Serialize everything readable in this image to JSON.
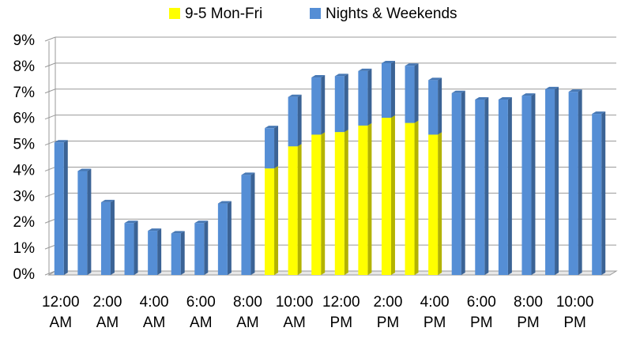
{
  "chart_data": {
    "type": "stacked-bar",
    "categories": [
      "12:00 AM",
      null,
      "2:00 AM",
      null,
      "4:00 AM",
      null,
      "6:00 AM",
      null,
      "8:00 AM",
      null,
      "10:00 AM",
      null,
      "12:00 PM",
      null,
      "2:00 PM",
      null,
      "4:00 PM",
      null,
      "6:00 PM",
      null,
      "8:00 PM",
      null,
      "10:00 PM",
      null
    ],
    "series": [
      {
        "name": "9-5 Mon-Fri",
        "color": "#ffff00",
        "values": [
          null,
          null,
          null,
          null,
          null,
          null,
          null,
          null,
          null,
          4.1,
          4.95,
          5.4,
          5.5,
          5.75,
          6.05,
          5.85,
          5.4,
          null,
          null,
          null,
          null,
          null,
          null,
          null
        ]
      },
      {
        "name": "Nights & Weekends",
        "color": "#558ed5",
        "values": [
          5.1,
          4.0,
          2.8,
          2.0,
          1.7,
          1.6,
          2.0,
          2.75,
          3.85,
          1.55,
          1.9,
          2.2,
          2.15,
          2.1,
          2.1,
          2.2,
          2.1,
          7.0,
          6.75,
          6.75,
          6.9,
          7.15,
          7.05,
          6.2
        ]
      }
    ],
    "ylim": [
      0,
      9
    ],
    "yticks": [
      {
        "value": 0,
        "label": "0%"
      },
      {
        "value": 1,
        "label": "1%"
      },
      {
        "value": 2,
        "label": "2%"
      },
      {
        "value": 3,
        "label": "3%"
      },
      {
        "value": 4,
        "label": "4%"
      },
      {
        "value": 5,
        "label": "5%"
      },
      {
        "value": 6,
        "label": "6%"
      },
      {
        "value": 7,
        "label": "7%"
      },
      {
        "value": 8,
        "label": "8%"
      },
      {
        "value": 9,
        "label": "9%"
      }
    ],
    "grid": true,
    "legend": "top"
  }
}
